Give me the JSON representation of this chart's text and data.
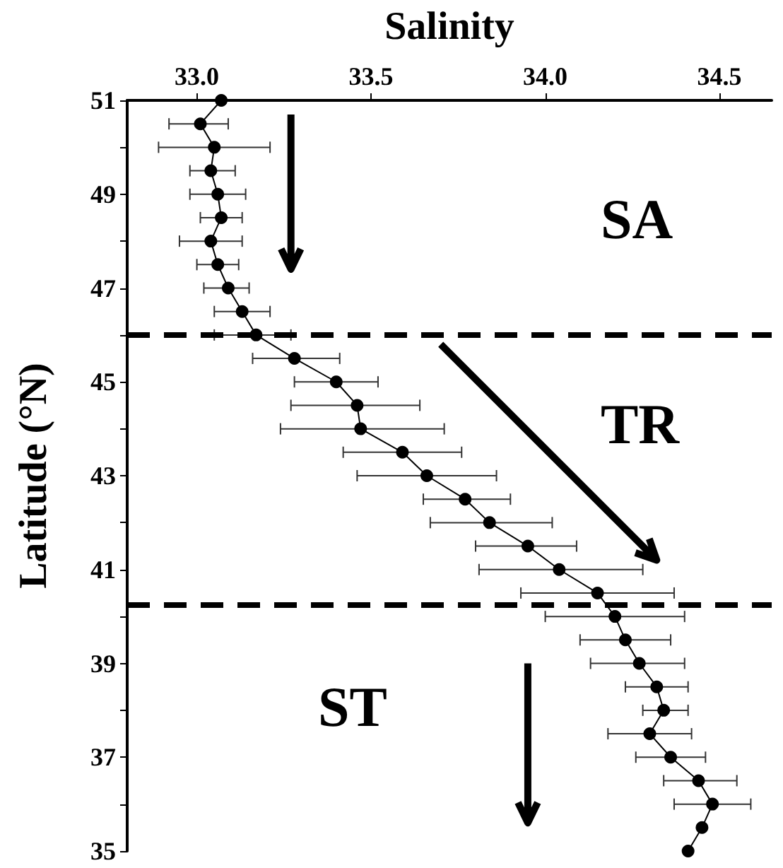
{
  "chart_data": {
    "type": "line",
    "xlabel": "Salinity",
    "ylabel": "Latitude (°N)",
    "x": [
      33.07,
      33.01,
      33.05,
      33.04,
      33.06,
      33.07,
      33.04,
      33.06,
      33.09,
      33.13,
      33.17,
      33.28,
      33.4,
      33.46,
      33.47,
      33.59,
      33.66,
      33.77,
      33.84,
      33.95,
      34.04,
      34.15,
      34.2,
      34.23,
      34.27,
      34.32,
      34.34,
      34.3,
      34.36,
      34.44,
      34.48,
      34.45,
      34.41
    ],
    "values": [
      51,
      50.5,
      50,
      49.5,
      49,
      48.5,
      48,
      47.5,
      47,
      46.5,
      46,
      45.5,
      45,
      44.5,
      44,
      43.5,
      43,
      42.5,
      42,
      41.5,
      41,
      40.5,
      40,
      39.5,
      39,
      38.5,
      38,
      37.5,
      37,
      36.5,
      36,
      35.5,
      35
    ],
    "xerrors": [
      null,
      [
        32.92,
        33.09
      ],
      [
        32.89,
        33.21
      ],
      [
        32.98,
        33.11
      ],
      [
        32.98,
        33.14
      ],
      [
        33.01,
        33.13
      ],
      [
        32.95,
        33.13
      ],
      [
        33.0,
        33.12
      ],
      [
        33.02,
        33.15
      ],
      [
        33.05,
        33.21
      ],
      [
        33.05,
        33.27
      ],
      [
        33.16,
        33.41
      ],
      [
        33.28,
        33.52
      ],
      [
        33.27,
        33.64
      ],
      [
        33.24,
        33.71
      ],
      [
        33.42,
        33.76
      ],
      [
        33.46,
        33.86
      ],
      [
        33.65,
        33.9
      ],
      [
        33.67,
        34.02
      ],
      [
        33.8,
        34.09
      ],
      [
        33.81,
        34.28
      ],
      [
        33.93,
        34.37
      ],
      [
        34.0,
        34.4
      ],
      [
        34.1,
        34.36
      ],
      [
        34.13,
        34.4
      ],
      [
        34.23,
        34.41
      ],
      [
        34.28,
        34.41
      ],
      [
        34.18,
        34.42
      ],
      [
        34.26,
        34.46
      ],
      [
        34.34,
        34.55
      ],
      [
        34.37,
        34.59
      ],
      null,
      null
    ],
    "color": "#000000",
    "marker": "circle",
    "line_style": "solid",
    "xlim": [
      32.8,
      34.65
    ],
    "xticks": [
      {
        "value": 33,
        "label": "33.0"
      },
      33.5,
      {
        "value": 34,
        "label": "34.0"
      },
      34.5
    ],
    "ylim": [
      35,
      51
    ],
    "yticks": [
      35,
      {
        "value": 36,
        "label": null
      },
      37,
      {
        "value": 38,
        "label": null
      },
      39,
      {
        "value": 40,
        "label": null
      },
      41,
      {
        "value": 42,
        "label": null
      },
      43,
      {
        "value": 44,
        "label": null
      },
      45,
      {
        "value": 46,
        "label": null
      },
      47,
      {
        "value": 48,
        "label": null
      },
      49,
      {
        "value": 50,
        "label": null
      },
      51
    ],
    "grid": false,
    "ref_lines": [
      {
        "axis": "y",
        "value": 46,
        "color": "#000000",
        "line_style": "dashed"
      },
      {
        "axis": "y",
        "value": 40.25,
        "color": "#000000",
        "line_style": "dashed"
      }
    ],
    "annotations": [
      "SA",
      "TR",
      "ST"
    ]
  }
}
